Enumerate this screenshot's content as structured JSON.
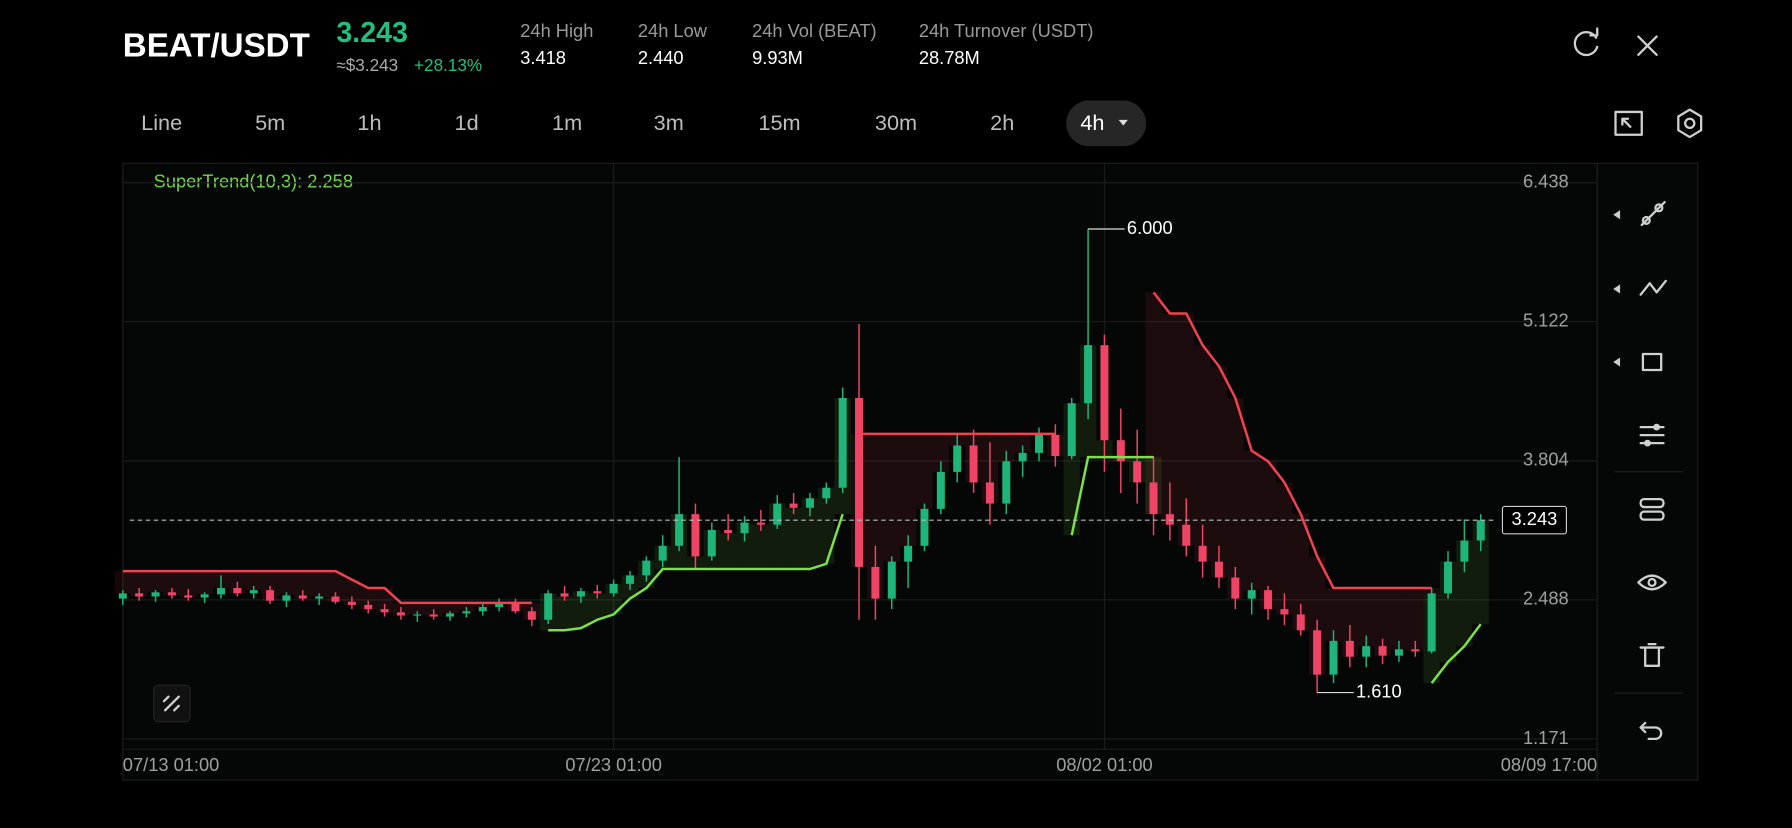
{
  "header": {
    "pair": "BEAT/USDT",
    "price": "3.243",
    "approx": "≈$3.243",
    "change": "+28.13%"
  },
  "stats": [
    {
      "label": "24h High",
      "value": "3.418"
    },
    {
      "label": "24h Low",
      "value": "2.440"
    },
    {
      "label": "24h Vol (BEAT)",
      "value": "9.93M"
    },
    {
      "label": "24h Turnover (USDT)",
      "value": "28.78M"
    }
  ],
  "timeframes": [
    "Line",
    "5m",
    "1h",
    "1d",
    "1m",
    "3m",
    "15m",
    "30m",
    "2h",
    "4h"
  ],
  "selected_timeframe": 9,
  "chart_data": {
    "type": "candlestick",
    "indicator_label": "SuperTrend(10,3): 2.258",
    "categories": [
      "07/13 01:00",
      null,
      null,
      null,
      null,
      null,
      null,
      null,
      null,
      null,
      null,
      null,
      null,
      null,
      null,
      null,
      null,
      null,
      null,
      null,
      null,
      null,
      null,
      null,
      null,
      null,
      null,
      null,
      null,
      null,
      "07/23 01:00",
      null,
      null,
      null,
      null,
      null,
      null,
      null,
      null,
      null,
      null,
      null,
      null,
      null,
      null,
      null,
      null,
      null,
      null,
      null,
      null,
      null,
      null,
      null,
      null,
      null,
      null,
      null,
      null,
      null,
      "08/02 01:00",
      null,
      null,
      null,
      null,
      null,
      null,
      null,
      null,
      null,
      null,
      null,
      null,
      null,
      null,
      null,
      null,
      null,
      null,
      null,
      null,
      null,
      null,
      "08/09 17:00"
    ],
    "open": [
      2.5,
      2.55,
      2.52,
      2.56,
      2.53,
      2.51,
      2.54,
      2.6,
      2.55,
      2.58,
      2.48,
      2.53,
      2.5,
      2.52,
      2.47,
      2.44,
      2.4,
      2.37,
      2.34,
      2.35,
      2.33,
      2.36,
      2.38,
      2.42,
      2.46,
      2.38,
      2.3,
      2.55,
      2.52,
      2.57,
      2.55,
      2.64,
      2.72,
      2.86,
      3.0,
      3.3,
      2.9,
      3.15,
      3.12,
      3.22,
      3.2,
      3.4,
      3.36,
      3.45,
      3.55,
      4.4,
      2.8,
      2.5,
      2.85,
      3.0,
      3.35,
      3.7,
      3.95,
      3.6,
      3.4,
      3.8,
      3.88,
      4.05,
      3.85,
      4.35,
      4.9,
      4.0,
      3.8,
      3.6,
      3.3,
      3.2,
      3.0,
      2.85,
      2.7,
      2.5,
      2.58,
      2.4,
      2.35,
      2.2,
      1.78,
      2.1,
      1.95,
      2.05,
      1.96,
      2.02,
      2.0,
      2.55,
      2.85,
      3.05
    ],
    "high": [
      2.58,
      2.6,
      2.58,
      2.6,
      2.59,
      2.56,
      2.72,
      2.66,
      2.62,
      2.62,
      2.56,
      2.58,
      2.55,
      2.56,
      2.52,
      2.48,
      2.45,
      2.42,
      2.38,
      2.4,
      2.38,
      2.42,
      2.46,
      2.5,
      2.5,
      2.42,
      2.58,
      2.62,
      2.6,
      2.63,
      2.68,
      2.76,
      2.9,
      3.1,
      3.84,
      3.4,
      3.22,
      3.3,
      3.28,
      3.34,
      3.48,
      3.5,
      3.5,
      3.6,
      4.5,
      5.1,
      3.0,
      2.9,
      3.1,
      3.4,
      3.8,
      4.05,
      4.1,
      3.98,
      3.9,
      3.95,
      4.12,
      4.15,
      4.4,
      6.0,
      5.0,
      4.3,
      4.1,
      3.85,
      3.6,
      3.45,
      3.2,
      3.0,
      2.8,
      2.65,
      2.62,
      2.55,
      2.45,
      2.3,
      2.2,
      2.25,
      2.15,
      2.12,
      2.1,
      2.1,
      2.6,
      2.95,
      3.25,
      3.3
    ],
    "low": [
      2.44,
      2.48,
      2.47,
      2.5,
      2.48,
      2.46,
      2.5,
      2.52,
      2.5,
      2.45,
      2.42,
      2.48,
      2.44,
      2.45,
      2.4,
      2.36,
      2.33,
      2.3,
      2.28,
      2.3,
      2.29,
      2.32,
      2.34,
      2.38,
      2.36,
      2.24,
      2.26,
      2.48,
      2.46,
      2.5,
      2.52,
      2.58,
      2.66,
      2.8,
      2.95,
      2.78,
      2.86,
      3.05,
      3.04,
      3.14,
      3.16,
      3.3,
      3.28,
      3.4,
      3.5,
      2.3,
      2.3,
      2.4,
      2.6,
      2.95,
      3.3,
      3.6,
      3.5,
      3.2,
      3.3,
      3.65,
      3.8,
      3.75,
      3.82,
      4.2,
      3.7,
      3.5,
      3.4,
      3.1,
      3.05,
      2.9,
      2.7,
      2.6,
      2.4,
      2.35,
      2.3,
      2.25,
      2.15,
      1.61,
      1.7,
      1.85,
      1.85,
      1.88,
      1.9,
      1.95,
      1.98,
      2.5,
      2.75,
      2.95
    ],
    "close": [
      2.55,
      2.52,
      2.56,
      2.53,
      2.51,
      2.54,
      2.6,
      2.55,
      2.58,
      2.48,
      2.53,
      2.5,
      2.52,
      2.47,
      2.44,
      2.4,
      2.37,
      2.34,
      2.35,
      2.33,
      2.36,
      2.38,
      2.42,
      2.46,
      2.38,
      2.3,
      2.55,
      2.52,
      2.57,
      2.55,
      2.64,
      2.72,
      2.86,
      3.0,
      3.3,
      2.9,
      3.15,
      3.12,
      3.22,
      3.2,
      3.4,
      3.36,
      3.45,
      3.55,
      4.4,
      2.8,
      2.5,
      2.85,
      3.0,
      3.35,
      3.7,
      3.95,
      3.6,
      3.4,
      3.8,
      3.88,
      4.05,
      3.85,
      4.35,
      4.9,
      4.0,
      3.8,
      3.6,
      3.3,
      3.2,
      3.0,
      2.85,
      2.7,
      2.5,
      2.58,
      2.4,
      2.35,
      2.2,
      1.78,
      2.1,
      1.95,
      2.05,
      1.96,
      2.02,
      2.0,
      2.55,
      2.85,
      3.05,
      3.243
    ],
    "up_color": "#1fb57a",
    "down_color": "#ef4465",
    "supertrend": [
      {
        "color": "#f0434f",
        "values": [
          2.76,
          2.76,
          2.76,
          2.76,
          2.76,
          2.76,
          2.76,
          2.76,
          2.76,
          2.76,
          2.76,
          2.76,
          2.76,
          2.76,
          2.68,
          2.6,
          2.6,
          2.46,
          2.46,
          2.46,
          2.46,
          2.46,
          2.46,
          2.46,
          2.46,
          2.46,
          null,
          null,
          null,
          null,
          null,
          null,
          null,
          null,
          null,
          null,
          null,
          null,
          null,
          null,
          null,
          null,
          null,
          null,
          null,
          4.06,
          4.06,
          4.06,
          4.06,
          4.06,
          4.06,
          4.06,
          4.06,
          4.06,
          4.06,
          4.06,
          4.06,
          4.06,
          null,
          null,
          null,
          null,
          null,
          5.4,
          5.2,
          5.2,
          4.9,
          4.7,
          4.4,
          3.9,
          3.8,
          3.6,
          3.3,
          2.9,
          2.6,
          2.6,
          2.6,
          2.6,
          2.6,
          2.6,
          2.6,
          null,
          null,
          null
        ]
      },
      {
        "color": "#7be04a",
        "values": [
          null,
          null,
          null,
          null,
          null,
          null,
          null,
          null,
          null,
          null,
          null,
          null,
          null,
          null,
          null,
          null,
          null,
          null,
          null,
          null,
          null,
          null,
          null,
          null,
          null,
          null,
          2.2,
          2.2,
          2.22,
          2.3,
          2.35,
          2.5,
          2.6,
          2.78,
          2.78,
          2.78,
          2.78,
          2.78,
          2.78,
          2.78,
          2.78,
          2.78,
          2.78,
          2.83,
          3.3,
          null,
          null,
          null,
          null,
          null,
          null,
          null,
          null,
          null,
          null,
          null,
          null,
          null,
          3.1,
          3.84,
          3.84,
          3.84,
          3.84,
          3.84,
          null,
          null,
          null,
          null,
          null,
          null,
          null,
          null,
          null,
          null,
          null,
          null,
          null,
          null,
          null,
          null,
          1.7,
          1.9,
          2.05,
          2.258
        ]
      }
    ],
    "ylim": [
      1.074,
      6.622
    ],
    "yticks": [
      6.438,
      5.122,
      3.804,
      2.488,
      1.171
    ],
    "grid": true,
    "last_price": 3.243,
    "annotations": [
      {
        "index": 59,
        "value": 6.0,
        "label": "6.000"
      },
      {
        "index": 73,
        "value": 1.61,
        "label": "1.610"
      }
    ]
  }
}
